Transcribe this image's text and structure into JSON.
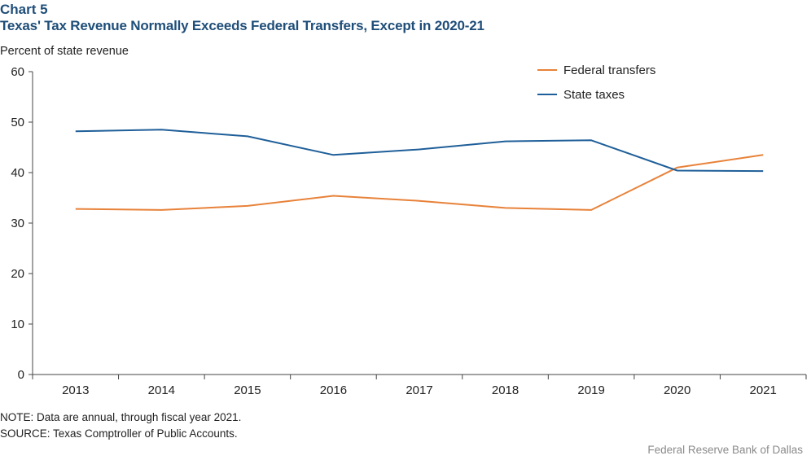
{
  "header": {
    "label": "Chart 5",
    "title": "Texas' Tax Revenue Normally Exceeds Federal Transfers, Except in 2020-21"
  },
  "footer": {
    "note": "NOTE: Data are annual, through fiscal year 2021.",
    "source": "SOURCE: Texas Comptroller of Public Accounts.",
    "credit": "Federal Reserve Bank of Dallas"
  },
  "chart_data": {
    "type": "line",
    "ylabel": "Percent of state revenue",
    "xlabel": "",
    "categories": [
      "2013",
      "2014",
      "2015",
      "2016",
      "2017",
      "2018",
      "2019",
      "2020",
      "2021"
    ],
    "ylim": [
      0,
      60
    ],
    "yticks": [
      0,
      10,
      20,
      30,
      40,
      50,
      60
    ],
    "grid": false,
    "legend_position": "top-right",
    "series": [
      {
        "name": "Federal transfers",
        "color": "#e8823a",
        "values": [
          32.8,
          32.6,
          33.4,
          35.4,
          34.4,
          33.0,
          32.6,
          41.0,
          43.5
        ]
      },
      {
        "name": "State taxes",
        "color": "#1f5f99",
        "values": [
          48.2,
          48.5,
          47.2,
          43.5,
          44.6,
          46.2,
          46.4,
          40.4,
          40.3
        ]
      }
    ]
  }
}
